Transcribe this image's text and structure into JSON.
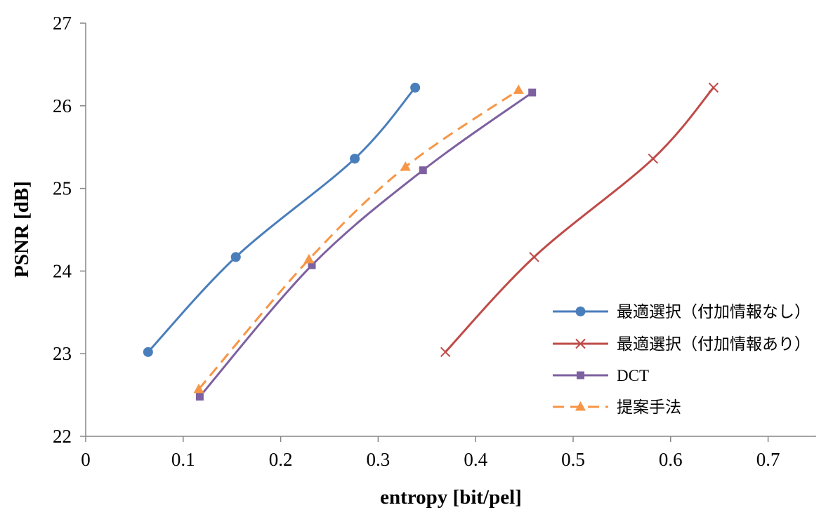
{
  "chart_data": {
    "type": "line",
    "title": "",
    "xlabel": "entropy [bit/pel]",
    "ylabel": "PSNR [dB]",
    "xlim": [
      0,
      0.75
    ],
    "ylim": [
      22,
      27
    ],
    "x_ticks": [
      "0",
      "0.1",
      "0.2",
      "0.3",
      "0.4",
      "0.5",
      "0.6",
      "0.7"
    ],
    "y_ticks": [
      "22",
      "23",
      "24",
      "25",
      "26",
      "27"
    ],
    "grid": false,
    "legend_position": "right",
    "series": [
      {
        "name": "最適選択（付加情報なし）",
        "color": "#4a7ebb",
        "marker": "circle",
        "dash": "solid",
        "points": [
          [
            0.064,
            23.02
          ],
          [
            0.154,
            24.17
          ],
          [
            0.276,
            25.36
          ],
          [
            0.338,
            26.22
          ]
        ]
      },
      {
        "name": "最適選択（付加情報あり）",
        "color": "#be4b48",
        "marker": "x",
        "dash": "solid",
        "points": [
          [
            0.369,
            23.02
          ],
          [
            0.46,
            24.17
          ],
          [
            0.582,
            25.36
          ],
          [
            0.644,
            26.22
          ]
        ]
      },
      {
        "name": "DCT",
        "color": "#7d60a0",
        "marker": "square",
        "dash": "solid",
        "points": [
          [
            0.117,
            22.48
          ],
          [
            0.232,
            24.07
          ],
          [
            0.346,
            25.22
          ],
          [
            0.458,
            26.16
          ]
        ]
      },
      {
        "name": "提案手法",
        "color": "#f79646",
        "marker": "triangle",
        "dash": "dashed",
        "points": [
          [
            0.116,
            22.57
          ],
          [
            0.229,
            24.14
          ],
          [
            0.328,
            25.26
          ],
          [
            0.444,
            26.19
          ]
        ]
      }
    ]
  }
}
